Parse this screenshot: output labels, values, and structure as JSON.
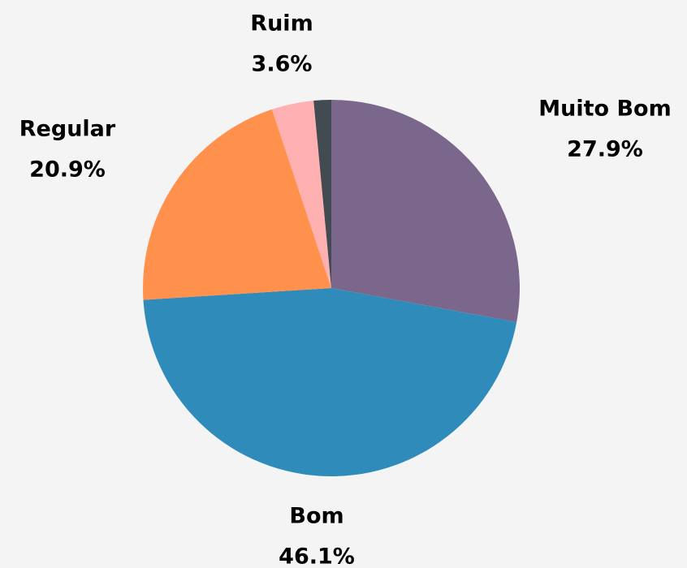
{
  "chart_data": {
    "type": "pie",
    "categories": [
      "Muito Bom",
      "Bom",
      "Regular",
      "Ruim",
      null
    ],
    "values": [
      27.9,
      46.1,
      20.9,
      3.6,
      1.5
    ],
    "value_labels": [
      "27.9%",
      "46.1%",
      "20.9%",
      "3.6%",
      null
    ],
    "colors": [
      "#7b668c",
      "#2e8bba",
      "#ff914d",
      "#ffb0b0",
      "#424a52"
    ]
  }
}
